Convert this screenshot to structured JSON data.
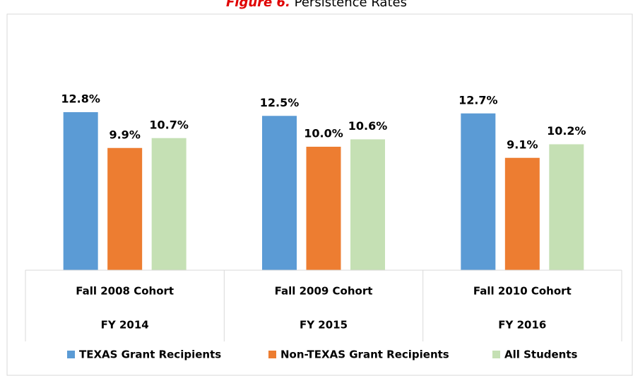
{
  "chart_data": {
    "type": "bar",
    "title_label": "Figure 6.",
    "title": "Persistence Rates",
    "categories": [
      "Fall 2008 Cohort",
      "Fall 2009 Cohort",
      "Fall 2010 Cohort"
    ],
    "subcategories": [
      "FY 2014",
      "FY 2015",
      "FY 2016"
    ],
    "series": [
      {
        "name": "TEXAS Grant Recipients",
        "color": "#5b9bd5",
        "values": [
          12.8,
          12.5,
          12.7
        ],
        "value_labels": [
          "12.8%",
          "12.5%",
          "12.7%"
        ]
      },
      {
        "name": "Non-TEXAS Grant Recipients",
        "color": "#ed7d31",
        "values": [
          9.9,
          10.0,
          9.1
        ],
        "value_labels": [
          "9.9%",
          "10.0%",
          "9.1%"
        ]
      },
      {
        "name": "All Students",
        "color": "#c5e0b4",
        "values": [
          10.7,
          10.6,
          10.2
        ],
        "value_labels": [
          "10.7%",
          "10.6%",
          "10.2%"
        ]
      }
    ],
    "ylim": [
      0,
      14
    ],
    "legend": "bottom"
  }
}
